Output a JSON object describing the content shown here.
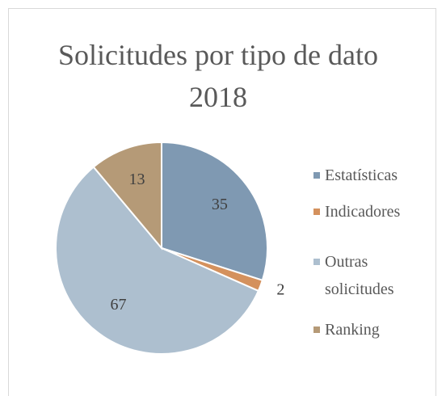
{
  "chart_data": {
    "type": "pie",
    "title": "Solicitudes por tipo de dato 2018",
    "categories": [
      "Estatísticas",
      "Indicadores",
      "Outras solicitudes",
      "Ranking"
    ],
    "values": [
      35,
      2,
      67,
      13
    ],
    "colors": [
      "#7f99b2",
      "#d4915d",
      "#adbfcf",
      "#b59a77"
    ],
    "legend": "right"
  }
}
